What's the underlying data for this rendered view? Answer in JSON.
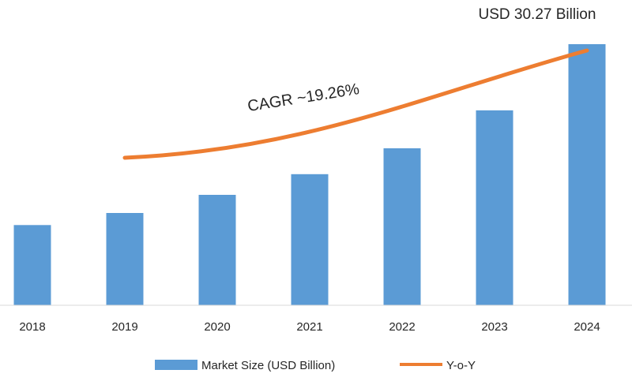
{
  "chart_data": {
    "type": "bar",
    "title": "",
    "xlabel": "",
    "ylabel": "",
    "categories": [
      "2018",
      "2019",
      "2020",
      "2021",
      "2022",
      "2023",
      "2024"
    ],
    "series": [
      {
        "name": "Market Size (USD Billion)",
        "type": "bar",
        "color": "#5b9bd5",
        "values": [
          9.3,
          10.7,
          12.8,
          15.2,
          18.2,
          22.6,
          30.27
        ]
      },
      {
        "name": "Y-o-Y",
        "type": "line",
        "color": "#ed7d31",
        "from_category": "2019",
        "to_category": "2024"
      }
    ],
    "ylim": [
      0,
      30.27
    ],
    "grid": false,
    "legend_position": "bottom",
    "annotations": {
      "top_value": "USD 30.27 Billion",
      "cagr": "CAGR ~19.26%"
    }
  }
}
